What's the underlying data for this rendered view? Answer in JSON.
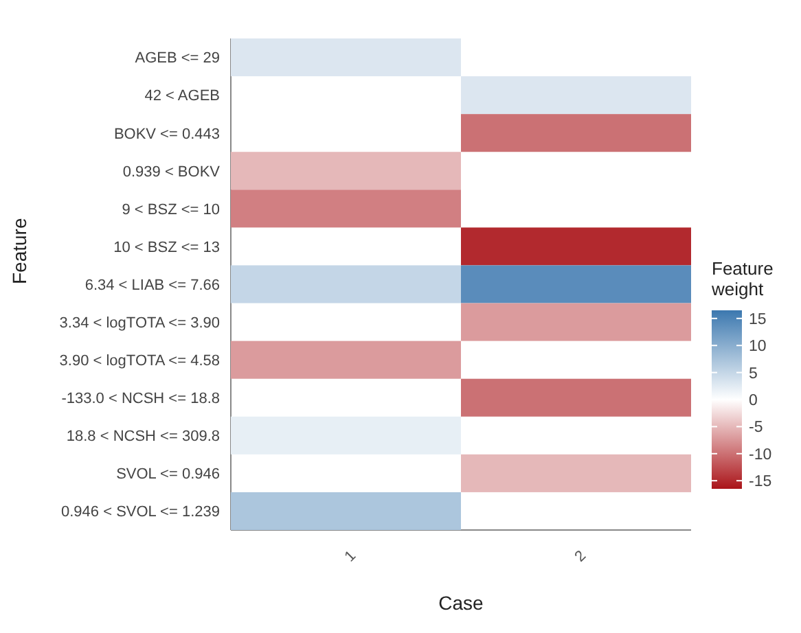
{
  "chart_data": {
    "type": "heatmap",
    "xlabel": "Case",
    "ylabel": "Feature",
    "clabel": "Feature weight",
    "categories": [
      "1",
      "2"
    ],
    "y_categories": [
      "AGEB <= 29",
      "42 < AGEB",
      "BOKV <= 0.443",
      "0.939 < BOKV",
      "9 < BSZ <= 10",
      "10 < BSZ <= 13",
      "6.34 < LIAB <= 7.66",
      "3.34 < logTOTA <= 3.90",
      "3.90 < logTOTA <= 4.58",
      "-133.0 < NCSH <= 18.8",
      "18.8 < NCSH <= 309.8",
      "SVOL <= 0.946",
      "0.946 < SVOL <= 1.239"
    ],
    "cells": [
      [
        3,
        null
      ],
      [
        null,
        3
      ],
      [
        null,
        -10
      ],
      [
        -5,
        null
      ],
      [
        -9,
        null
      ],
      [
        null,
        -15
      ],
      [
        5,
        14
      ],
      [
        null,
        -7
      ],
      [
        -7,
        null
      ],
      [
        null,
        -10
      ],
      [
        2,
        null
      ],
      [
        null,
        -5
      ],
      [
        7,
        null
      ]
    ],
    "clim": [
      -16.5,
      16.5
    ],
    "cticks": [
      -15,
      -10,
      -5,
      0,
      5,
      10,
      15
    ]
  }
}
